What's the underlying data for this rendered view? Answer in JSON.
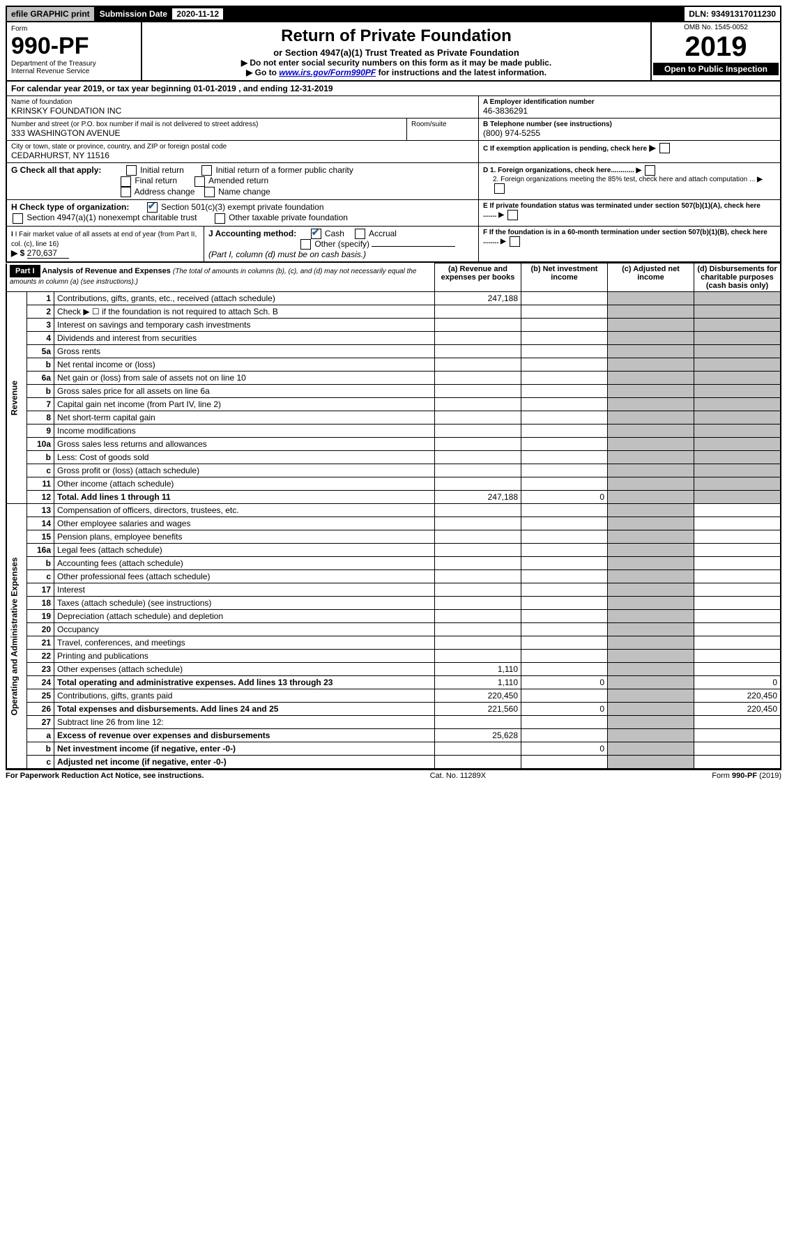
{
  "top": {
    "efile": "efile GRAPHIC print",
    "submission_label": "Submission Date",
    "submission_date": "2020-11-12",
    "dln_label": "DLN:",
    "dln": "93491317011230"
  },
  "header": {
    "form_word": "Form",
    "form_no": "990-PF",
    "dept": "Department of the Treasury",
    "irs": "Internal Revenue Service",
    "title": "Return of Private Foundation",
    "subtitle": "or Section 4947(a)(1) Trust Treated as Private Foundation",
    "note1": "▶ Do not enter social security numbers on this form as it may be made public.",
    "note2_pre": "▶ Go to ",
    "note2_link": "www.irs.gov/Form990PF",
    "note2_post": " for instructions and the latest information.",
    "omb": "OMB No. 1545-0052",
    "year": "2019",
    "open": "Open to Public Inspection"
  },
  "cal_year": {
    "text_pre": "For calendar year 2019, or tax year beginning ",
    "begin": "01-01-2019",
    "text_mid": " , and ending ",
    "end": "12-31-2019"
  },
  "entity": {
    "name_label": "Name of foundation",
    "name": "KRINSKY FOUNDATION INC",
    "addr_label": "Number and street (or P.O. box number if mail is not delivered to street address)",
    "addr": "333 WASHINGTON AVENUE",
    "room_label": "Room/suite",
    "city_label": "City or town, state or province, country, and ZIP or foreign postal code",
    "city": "CEDARHURST, NY  11516",
    "ein_label": "A Employer identification number",
    "ein": "46-3836291",
    "phone_label": "B Telephone number (see instructions)",
    "phone": "(800) 974-5255",
    "c_label": "C If exemption application is pending, check here"
  },
  "checks": {
    "g_label": "G Check all that apply:",
    "g_items": [
      "Initial return",
      "Initial return of a former public charity",
      "Final return",
      "Amended return",
      "Address change",
      "Name change"
    ],
    "h_label": "H Check type of organization:",
    "h1": "Section 501(c)(3) exempt private foundation",
    "h2": "Section 4947(a)(1) nonexempt charitable trust",
    "h3": "Other taxable private foundation",
    "i_label": "I Fair market value of all assets at end of year (from Part II, col. (c), line 16)",
    "i_arrow": "▶ $",
    "i_value": "270,637",
    "j_label": "J Accounting method:",
    "j_cash": "Cash",
    "j_accrual": "Accrual",
    "j_other": "Other (specify)",
    "j_note": "(Part I, column (d) must be on cash basis.)",
    "d1": "D 1. Foreign organizations, check here............",
    "d2": "2. Foreign organizations meeting the 85% test, check here and attach computation ...",
    "e": "E  If private foundation status was terminated under section 507(b)(1)(A), check here .......",
    "f": "F  If the foundation is in a 60-month termination under section 507(b)(1)(B), check here ........"
  },
  "part1": {
    "label": "Part I",
    "title": "Analysis of Revenue and Expenses",
    "title_note": "(The total of amounts in columns (b), (c), and (d) may not necessarily equal the amounts in column (a) (see instructions).)",
    "cols": {
      "a": "(a)   Revenue and expenses per books",
      "b": "(b)  Net investment income",
      "c": "(c)  Adjusted net income",
      "d": "(d)  Disbursements for charitable purposes (cash basis only)"
    }
  },
  "sections": {
    "revenue": "Revenue",
    "expenses": "Operating and Administrative Expenses"
  },
  "rows_revenue": [
    {
      "n": "1",
      "desc": "Contributions, gifts, grants, etc., received (attach schedule)",
      "a": "247,188"
    },
    {
      "n": "2",
      "desc": "Check ▶ ☐ if the foundation is not required to attach Sch. B"
    },
    {
      "n": "3",
      "desc": "Interest on savings and temporary cash investments"
    },
    {
      "n": "4",
      "desc": "Dividends and interest from securities"
    },
    {
      "n": "5a",
      "desc": "Gross rents"
    },
    {
      "n": "b",
      "desc": "Net rental income or (loss)"
    },
    {
      "n": "6a",
      "desc": "Net gain or (loss) from sale of assets not on line 10"
    },
    {
      "n": "b",
      "desc": "Gross sales price for all assets on line 6a"
    },
    {
      "n": "7",
      "desc": "Capital gain net income (from Part IV, line 2)"
    },
    {
      "n": "8",
      "desc": "Net short-term capital gain"
    },
    {
      "n": "9",
      "desc": "Income modifications"
    },
    {
      "n": "10a",
      "desc": "Gross sales less returns and allowances"
    },
    {
      "n": "b",
      "desc": "Less: Cost of goods sold"
    },
    {
      "n": "c",
      "desc": "Gross profit or (loss) (attach schedule)"
    },
    {
      "n": "11",
      "desc": "Other income (attach schedule)"
    },
    {
      "n": "12",
      "desc": "Total. Add lines 1 through 11",
      "a": "247,188",
      "b": "0",
      "bold": true
    }
  ],
  "rows_expenses": [
    {
      "n": "13",
      "desc": "Compensation of officers, directors, trustees, etc."
    },
    {
      "n": "14",
      "desc": "Other employee salaries and wages"
    },
    {
      "n": "15",
      "desc": "Pension plans, employee benefits"
    },
    {
      "n": "16a",
      "desc": "Legal fees (attach schedule)"
    },
    {
      "n": "b",
      "desc": "Accounting fees (attach schedule)"
    },
    {
      "n": "c",
      "desc": "Other professional fees (attach schedule)"
    },
    {
      "n": "17",
      "desc": "Interest"
    },
    {
      "n": "18",
      "desc": "Taxes (attach schedule) (see instructions)"
    },
    {
      "n": "19",
      "desc": "Depreciation (attach schedule) and depletion"
    },
    {
      "n": "20",
      "desc": "Occupancy"
    },
    {
      "n": "21",
      "desc": "Travel, conferences, and meetings"
    },
    {
      "n": "22",
      "desc": "Printing and publications"
    },
    {
      "n": "23",
      "desc": "Other expenses (attach schedule)",
      "a": "1,110",
      "icon": true
    },
    {
      "n": "24",
      "desc": "Total operating and administrative expenses. Add lines 13 through 23",
      "a": "1,110",
      "b": "0",
      "d": "0",
      "bold": true
    },
    {
      "n": "25",
      "desc": "Contributions, gifts, grants paid",
      "a": "220,450",
      "d": "220,450"
    },
    {
      "n": "26",
      "desc": "Total expenses and disbursements. Add lines 24 and 25",
      "a": "221,560",
      "b": "0",
      "d": "220,450",
      "bold": true
    },
    {
      "n": "27",
      "desc": "Subtract line 26 from line 12:"
    },
    {
      "n": "a",
      "desc": "Excess of revenue over expenses and disbursements",
      "a": "25,628",
      "bold": true
    },
    {
      "n": "b",
      "desc": "Net investment income (if negative, enter -0-)",
      "b": "0",
      "bold": true
    },
    {
      "n": "c",
      "desc": "Adjusted net income (if negative, enter -0-)",
      "bold": true
    }
  ],
  "footer": {
    "left": "For Paperwork Reduction Act Notice, see instructions.",
    "center": "Cat. No. 11289X",
    "right": "Form 990-PF (2019)"
  }
}
